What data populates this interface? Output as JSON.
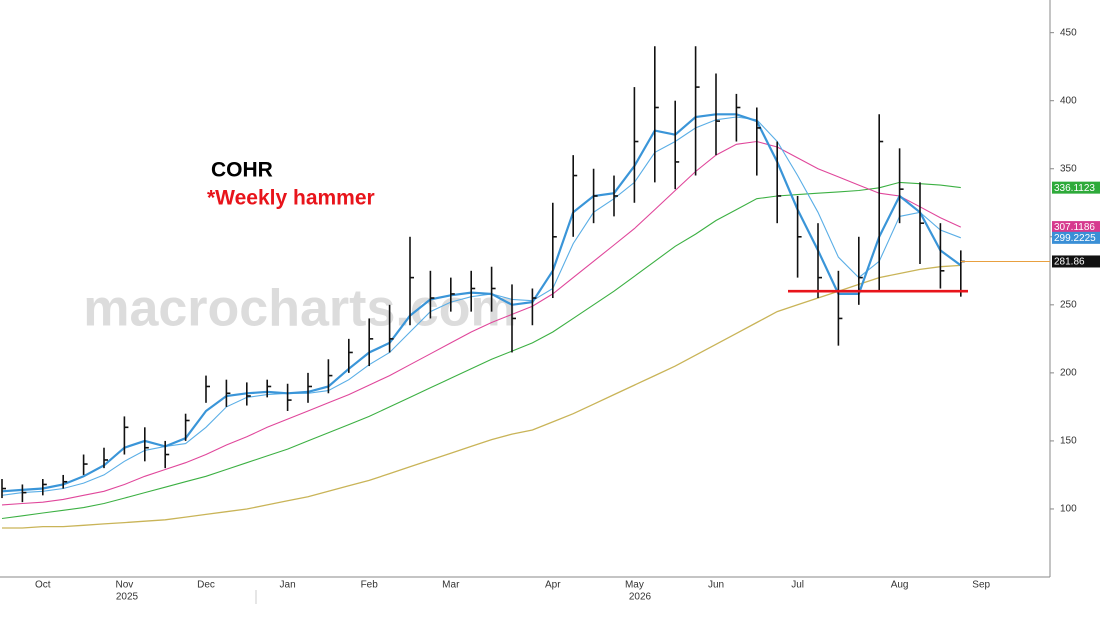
{
  "chart_data": {
    "type": "ohlc",
    "title": "COHR",
    "subtitle": "*Weekly hammer",
    "watermark": "macrocharts.com",
    "categories": [
      null,
      null,
      "Oct",
      null,
      null,
      null,
      "Nov",
      null,
      null,
      null,
      "Dec",
      null,
      null,
      null,
      "Jan",
      null,
      null,
      null,
      "Feb",
      null,
      null,
      null,
      "Mar",
      null,
      null,
      null,
      null,
      "Apr",
      null,
      null,
      null,
      "May",
      null,
      null,
      null,
      "Jun",
      null,
      null,
      null,
      "Jul",
      null,
      null,
      null,
      null,
      "Aug",
      null,
      null,
      null,
      "Sep"
    ],
    "years": [
      "2025",
      "2026"
    ],
    "price": {
      "color": "#111111",
      "high": [
        122,
        118,
        122,
        125,
        140,
        145,
        168,
        160,
        150,
        170,
        198,
        195,
        193,
        195,
        192,
        200,
        210,
        225,
        240,
        250,
        300,
        275,
        270,
        275,
        278,
        265,
        262,
        325,
        360,
        350,
        345,
        410,
        440,
        400,
        440,
        420,
        405,
        395,
        370,
        330,
        310,
        275,
        300,
        390,
        365,
        340,
        310,
        290,
        null
      ],
      "low": [
        108,
        105,
        110,
        115,
        125,
        130,
        140,
        135,
        130,
        150,
        178,
        175,
        176,
        182,
        172,
        178,
        185,
        200,
        205,
        215,
        235,
        240,
        245,
        245,
        245,
        215,
        235,
        255,
        300,
        310,
        315,
        325,
        340,
        335,
        345,
        360,
        370,
        345,
        310,
        270,
        255,
        220,
        250,
        260,
        310,
        280,
        262,
        256,
        null
      ],
      "close": [
        115,
        112,
        118,
        120,
        133,
        136,
        160,
        145,
        140,
        165,
        190,
        185,
        183,
        190,
        180,
        190,
        198,
        215,
        225,
        225,
        270,
        255,
        258,
        262,
        262,
        240,
        255,
        300,
        345,
        330,
        330,
        370,
        395,
        355,
        410,
        385,
        395,
        380,
        330,
        300,
        270,
        240,
        270,
        370,
        335,
        310,
        275,
        281.86,
        null
      ]
    },
    "series": [
      {
        "color": "#c9b458",
        "width": 1.3,
        "values": [
          86,
          86,
          87,
          87,
          88,
          89,
          90,
          91,
          92,
          94,
          96,
          98,
          100,
          103,
          106,
          109,
          113,
          117,
          121,
          126,
          131,
          136,
          141,
          146,
          151,
          155,
          158,
          164,
          170,
          177,
          184,
          191,
          198,
          205,
          213,
          221,
          229,
          237,
          245,
          250,
          255,
          260,
          265,
          270,
          273,
          276,
          278,
          279,
          null
        ]
      },
      {
        "color": "#3cb043",
        "width": 1.1,
        "values": [
          93,
          95,
          97,
          99,
          101,
          104,
          108,
          112,
          116,
          120,
          124,
          129,
          134,
          139,
          144,
          150,
          156,
          162,
          168,
          175,
          182,
          189,
          196,
          203,
          210,
          216,
          222,
          230,
          240,
          250,
          260,
          271,
          282,
          293,
          302,
          312,
          320,
          328,
          330,
          331,
          332,
          333,
          334,
          336,
          340,
          339,
          338,
          336.1123,
          null
        ]
      },
      {
        "color": "#e0479b",
        "width": 1.1,
        "values": [
          103,
          104,
          105,
          107,
          110,
          113,
          118,
          124,
          129,
          134,
          140,
          147,
          153,
          160,
          166,
          172,
          178,
          184,
          191,
          198,
          206,
          214,
          222,
          230,
          237,
          243,
          249,
          258,
          270,
          282,
          294,
          306,
          320,
          334,
          348,
          360,
          368,
          370,
          366,
          358,
          350,
          344,
          338,
          332,
          330,
          322,
          314,
          307.1186,
          null
        ]
      },
      {
        "color": "#5aaee6",
        "width": 1.1,
        "values": [
          110,
          112,
          113,
          115,
          119,
          125,
          135,
          143,
          146,
          148,
          160,
          175,
          182,
          184,
          185,
          185,
          187,
          195,
          206,
          215,
          230,
          245,
          252,
          256,
          258,
          254,
          253,
          262,
          295,
          318,
          328,
          340,
          362,
          370,
          380,
          386,
          388,
          386,
          370,
          345,
          318,
          285,
          270,
          282,
          315,
          318,
          305,
          299.2225,
          null
        ]
      },
      {
        "color": "#3a95d8",
        "width": 2.2,
        "values": [
          113,
          114,
          115,
          118,
          124,
          132,
          145,
          150,
          146,
          152,
          172,
          183,
          185,
          186,
          185,
          186,
          190,
          203,
          215,
          222,
          242,
          254,
          257,
          259,
          258,
          250,
          252,
          275,
          318,
          330,
          332,
          352,
          378,
          375,
          388,
          390,
          390,
          385,
          355,
          320,
          290,
          258,
          258,
          300,
          330,
          318,
          290,
          279,
          null
        ]
      }
    ],
    "tags": [
      {
        "series": 1,
        "color": "#2eaa3a"
      },
      {
        "series": 2,
        "color": "#d63a8e"
      },
      {
        "series": 3,
        "color": "#3a8fd6"
      }
    ],
    "last_price_color": "#e8a040",
    "annotations": [
      {
        "type": "hline",
        "value": 260,
        "color": "#e8141b"
      }
    ],
    "ylim": [
      50,
      474
    ],
    "yticks": [
      100,
      150,
      200,
      250,
      300,
      350,
      400,
      450
    ],
    "y_axis_side": "right"
  }
}
